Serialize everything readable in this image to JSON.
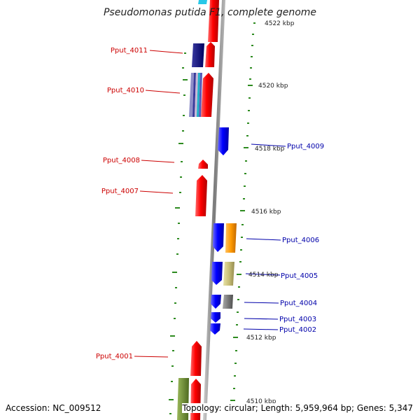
{
  "title": "Pseudomonas putida F1, complete genome",
  "footer": {
    "accession": "Accession: NC_009512",
    "topology": "Topology: circular; Length: 5,959,964 bp; Genes: 5,347"
  },
  "colors": {
    "backbone": "#8a8a8a",
    "ticks": "#2e8b20",
    "forward_gene": "#ff0000",
    "reverse_gene": "#0000ff",
    "forward_label": "#cc0000",
    "reverse_label": "#0000aa"
  },
  "scale_labels": [
    "4522 kbp",
    "4520 kbp",
    "4518 kbp",
    "4516 kbp",
    "4514 kbp",
    "4512 kbp",
    "4510 kbp"
  ],
  "gene_labels": [
    {
      "text": "Pput_4011",
      "strand": "forward"
    },
    {
      "text": "Pput_4010",
      "strand": "forward"
    },
    {
      "text": "Pput_4009",
      "strand": "reverse"
    },
    {
      "text": "Pput_4008",
      "strand": "forward"
    },
    {
      "text": "Pput_4007",
      "strand": "forward"
    },
    {
      "text": "Pput_4006",
      "strand": "reverse"
    },
    {
      "text": "Pput_4005",
      "strand": "reverse"
    },
    {
      "text": "Pput_4004",
      "strand": "reverse"
    },
    {
      "text": "Pput_4003",
      "strand": "reverse"
    },
    {
      "text": "Pput_4002",
      "strand": "reverse"
    },
    {
      "text": "Pput_4001",
      "strand": "forward"
    }
  ]
}
